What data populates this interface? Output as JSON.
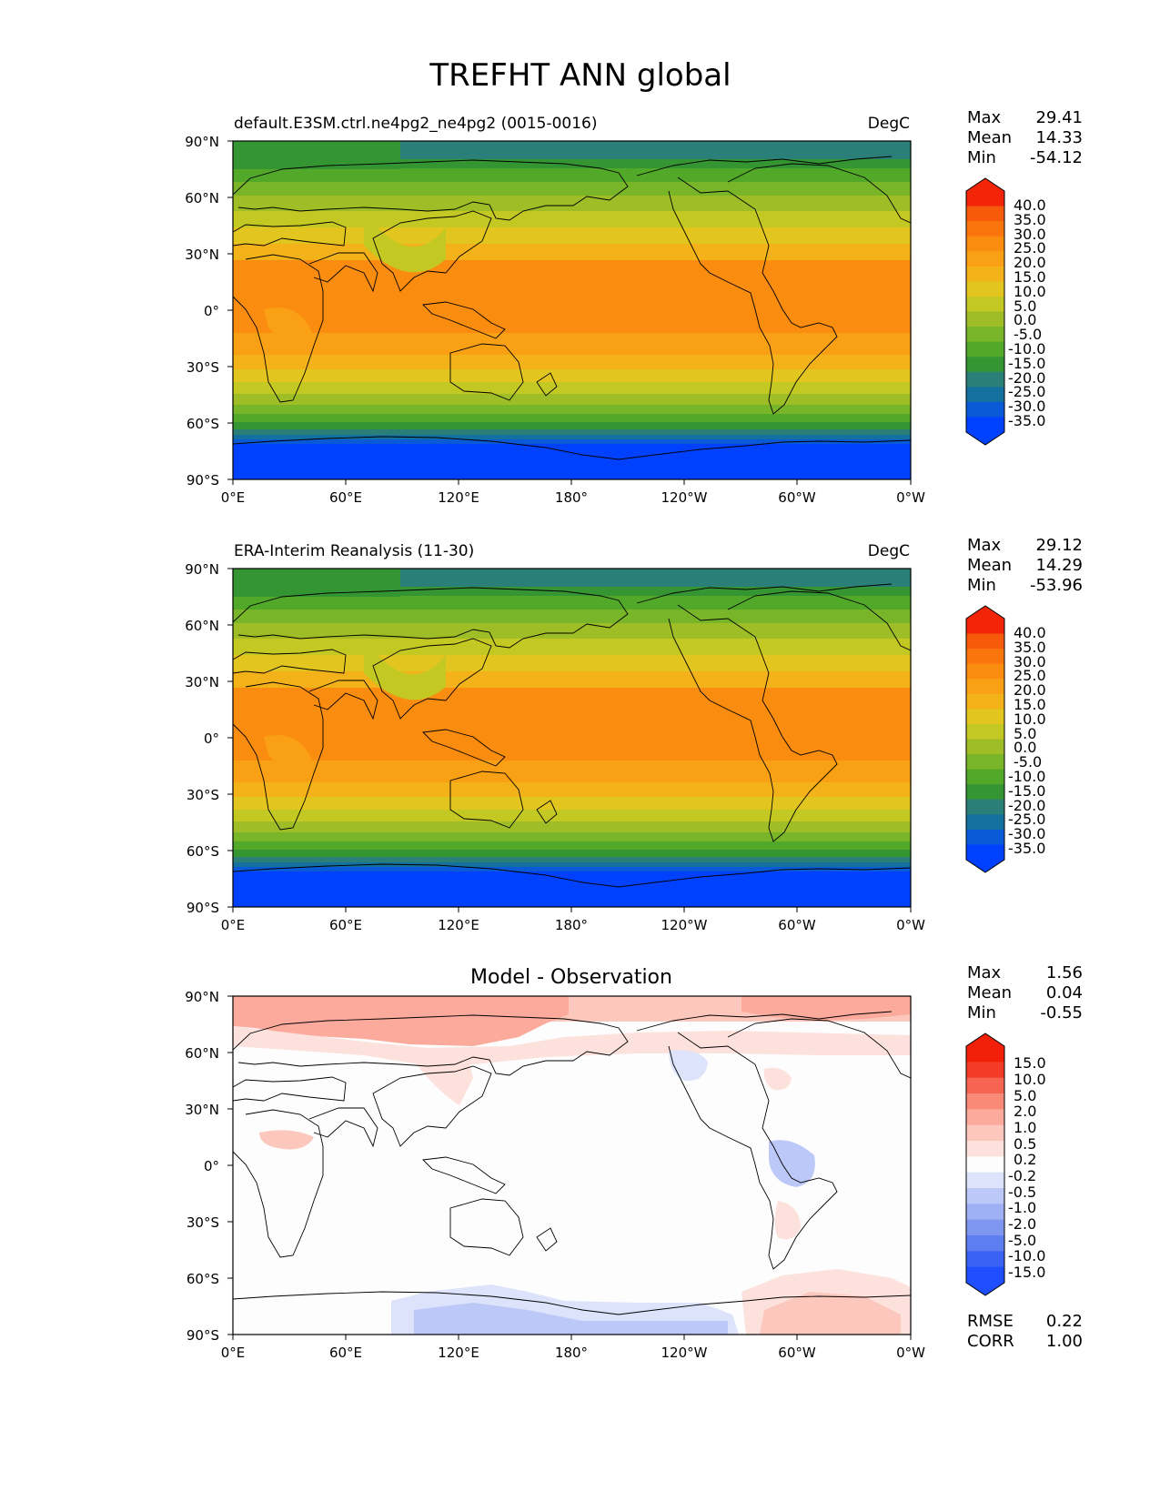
{
  "figure": {
    "title": "TREFHT ANN global",
    "lat_labels": [
      "90°N",
      "60°N",
      "30°N",
      "0°",
      "30°S",
      "60°S",
      "90°S"
    ],
    "lon_labels": [
      "0°E",
      "60°E",
      "120°E",
      "180°",
      "120°W",
      "60°W",
      "0°W"
    ]
  },
  "colors": {
    "temperature_scale": [
      "#0040ff",
      "#0a5ad8",
      "#14709e",
      "#2a8078",
      "#359532",
      "#52a929",
      "#78b528",
      "#9fbd26",
      "#c4c822",
      "#e2c61f",
      "#f4b21a",
      "#f9a015",
      "#fa8c10",
      "#fa760d",
      "#f85a0b",
      "#f22508"
    ],
    "difference_scale": [
      "#1f4eff",
      "#3a62f4",
      "#5c7ef0",
      "#7f96f0",
      "#9fb0f4",
      "#bcc8f7",
      "#dde3fb",
      "#fdfdfd",
      "#fde1dc",
      "#fcc7bd",
      "#fbaa9b",
      "#f98a78",
      "#f66452",
      "#f43b27",
      "#f22008"
    ],
    "land_outline": "#000000"
  },
  "panels": [
    {
      "id": "test",
      "left_title": "default.E3SM.ctrl.ne4pg2_ne4pg2 (0015-0016)",
      "center_title": "",
      "units": "DegC",
      "stats": [
        {
          "label": "Max",
          "value": "29.41"
        },
        {
          "label": "Mean",
          "value": "14.33"
        },
        {
          "label": "Min",
          "value": "-54.12"
        }
      ],
      "colorbar_ticks": [
        "40.0",
        "35.0",
        "30.0",
        "25.0",
        "20.0",
        "15.0",
        "10.0",
        "5.0",
        "0.0",
        "-5.0",
        "-10.0",
        "-15.0",
        "-20.0",
        "-25.0",
        "-30.0",
        "-35.0"
      ]
    },
    {
      "id": "reference",
      "left_title": "ERA-Interim Reanalysis (11-30)",
      "center_title": "",
      "units": "DegC",
      "stats": [
        {
          "label": "Max",
          "value": "29.12"
        },
        {
          "label": "Mean",
          "value": "14.29"
        },
        {
          "label": "Min",
          "value": "-53.96"
        }
      ],
      "colorbar_ticks": [
        "40.0",
        "35.0",
        "30.0",
        "25.0",
        "20.0",
        "15.0",
        "10.0",
        "5.0",
        "0.0",
        "-5.0",
        "-10.0",
        "-15.0",
        "-20.0",
        "-25.0",
        "-30.0",
        "-35.0"
      ]
    },
    {
      "id": "difference",
      "left_title": "",
      "center_title": "Model - Observation",
      "units": "",
      "stats": [
        {
          "label": "Max",
          "value": "1.56"
        },
        {
          "label": "Mean",
          "value": "0.04"
        },
        {
          "label": "Min",
          "value": "-0.55"
        }
      ],
      "colorbar_ticks": [
        "15.0",
        "10.0",
        "5.0",
        "2.0",
        "1.0",
        "0.5",
        "0.2",
        "-0.2",
        "-0.5",
        "-1.0",
        "-2.0",
        "-5.0",
        "-10.0",
        "-15.0"
      ],
      "extra_stats": [
        {
          "label": "RMSE",
          "value": "0.22"
        },
        {
          "label": "CORR",
          "value": "1.00"
        }
      ]
    }
  ]
}
